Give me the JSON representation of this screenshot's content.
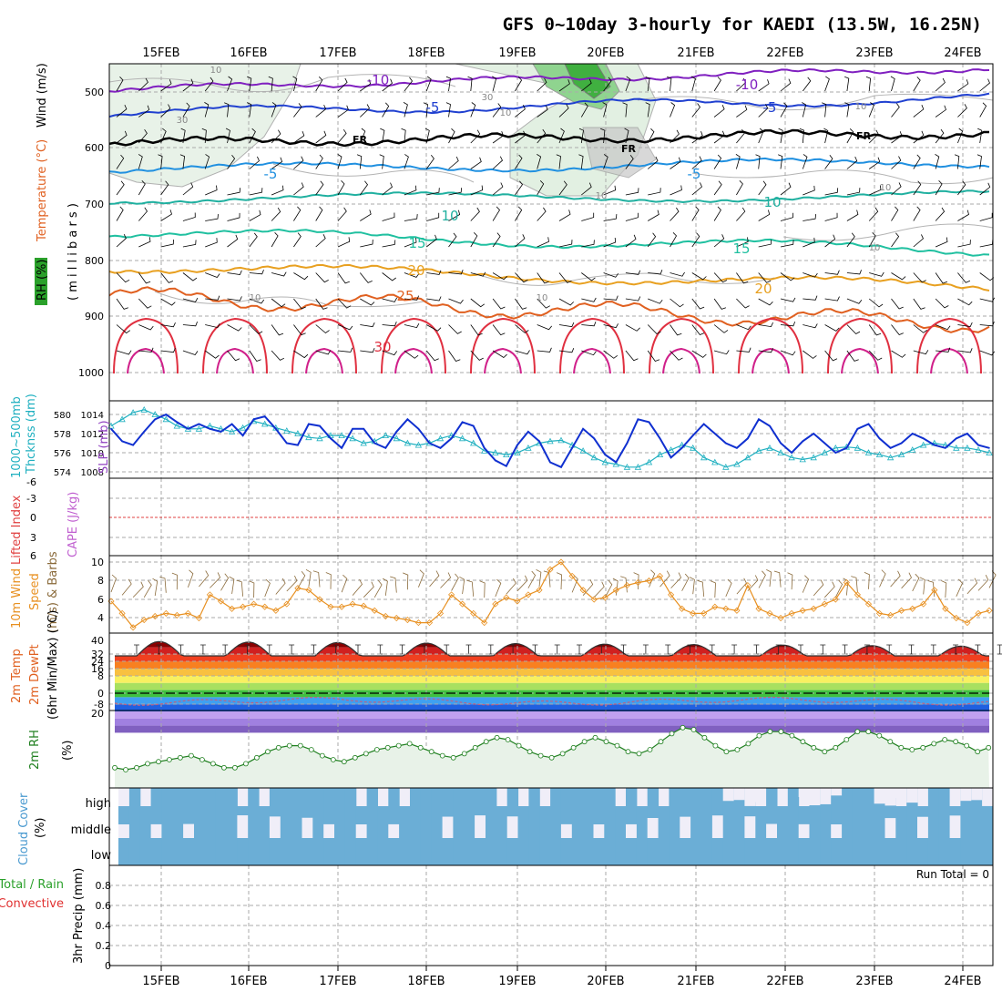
{
  "title": "GFS 0~10day 3-hourly for KAEDI (13.5W, 16.25N)",
  "run_total": "Run Total = 0",
  "dates": [
    "15FEB",
    "16FEB",
    "17FEB",
    "18FEB",
    "19FEB",
    "20FEB",
    "21FEB",
    "22FEB",
    "23FEB",
    "24FEB"
  ],
  "colors": {
    "temp_warm": "#e8a020",
    "temp_hot": "#e06020",
    "temp_red": "#e03040",
    "temp_cool": "#20b0a0",
    "temp_blue": "#2090e0",
    "temp_dark_blue": "#2040d0",
    "temp_purple": "#8020c0",
    "slp": "#1030d0",
    "thickness": "#20b0c0",
    "wind": "#e89020",
    "rh": "#208020",
    "cloud": "#6baed6",
    "cloud_clear": "#f0eef8"
  },
  "panels": {
    "upper": {
      "ylabel_rh": "RH (%)",
      "ylabel_temp": "Temperature (°C)",
      "ylabel_wind": "Wind (m/s)",
      "ylabel_units": "( m i l l i b a r s )",
      "yticks": [
        "500",
        "600",
        "700",
        "800",
        "900",
        "1000"
      ]
    },
    "slp": {
      "ylabel_thick": "1000~500mb",
      "ylabel_thick2": "Thcknss (dm)",
      "ylabel_slp": "SLP (mb)",
      "left_ticks": [
        "580",
        "578",
        "576",
        "574"
      ],
      "right_ticks": [
        "1014",
        "1012",
        "1010",
        "1008"
      ]
    },
    "cape": {
      "ylabel_li": "Lifted Index",
      "ylabel_cape": "CAPE (J/kg)",
      "yticks": [
        "-6",
        "-3",
        "0",
        "3",
        "6"
      ]
    },
    "wind10": {
      "ylabel1": "10m Wind",
      "ylabel2": "Speed",
      "ylabel3": "(m/s) & Barbs",
      "yticks": [
        "10",
        "8",
        "6",
        "4"
      ]
    },
    "temp2m": {
      "ylabel1": "2m Temp",
      "ylabel2": "2m DewPt",
      "ylabel3": "(6hr Min/Max) (°C)",
      "yticks": [
        "40",
        "32",
        "24",
        "16",
        "8",
        "0",
        "-8"
      ]
    },
    "rh2m": {
      "ylabel1": "2m RH",
      "ylabel2": "(%)",
      "yticks": [
        "20"
      ]
    },
    "cloud": {
      "ylabel1": "Cloud Cover",
      "ylabel2": "(%)",
      "levels": [
        "high",
        "middle",
        "low"
      ]
    },
    "precip": {
      "ylabel1": "Total / Rain",
      "ylabel2": "Convective",
      "ylabel3": "3hr Precip (mm)",
      "yticks": [
        "0.8",
        "0.6",
        "0.4",
        "0.2",
        "0"
      ]
    }
  },
  "contour_labels": {
    "temp": [
      "-10",
      "-10",
      "-5",
      "-5",
      "FR",
      "FR",
      "FR",
      "-5",
      "-5",
      "10",
      "10",
      "15",
      "15",
      "20",
      "20",
      "25",
      "30"
    ],
    "rh": [
      "10",
      "10",
      "30",
      "30",
      "10",
      "10",
      "10",
      "10",
      "10",
      "10"
    ]
  },
  "chart_data": [
    {
      "type": "line",
      "title": "SLP (mb)",
      "series": [
        {
          "name": "SLP (mb)",
          "unit": "mb",
          "values": [
            1012.5,
            1011.2,
            1010.8,
            1012.2,
            1013.5,
            1014.0,
            1013.2,
            1012.5,
            1013.0,
            1012.5,
            1012.2,
            1013.0,
            1011.8,
            1013.5,
            1013.8,
            1012.5,
            1011.0,
            1010.8,
            1013.0,
            1012.8,
            1011.5,
            1010.5,
            1012.5,
            1012.5,
            1011.0,
            1010.5,
            1012.2,
            1013.5,
            1012.5,
            1011.0,
            1010.5,
            1011.5,
            1013.2,
            1012.8,
            1010.5,
            1009.2,
            1008.6,
            1010.8,
            1012.2,
            1011.2,
            1009.0,
            1008.5,
            1010.5,
            1012.5,
            1011.5,
            1009.8,
            1009.0,
            1011.0,
            1013.5,
            1013.2,
            1011.5,
            1009.5,
            1010.5,
            1011.8,
            1013.0,
            1012.0,
            1011.0,
            1010.5,
            1011.5,
            1013.5,
            1012.8,
            1011.0,
            1010.0,
            1011.2,
            1012.0,
            1011.0,
            1010.0,
            1010.5,
            1012.5,
            1013.0,
            1011.5,
            1010.5,
            1011.0,
            1012.0,
            1011.5,
            1010.8,
            1010.5,
            1011.5,
            1012.0,
            1010.8,
            1010.5
          ]
        },
        {
          "name": "1000~500mb Thcknss (dm)",
          "unit": "dm",
          "values": [
            578.8,
            579.5,
            580.2,
            580.5,
            580.0,
            579.5,
            578.8,
            578.5,
            578.5,
            578.8,
            578.5,
            578.2,
            578.6,
            579.3,
            579.0,
            578.6,
            578.3,
            578.0,
            577.6,
            577.5,
            577.8,
            577.8,
            577.5,
            577.0,
            577.2,
            577.8,
            577.5,
            577.0,
            576.8,
            577.0,
            577.5,
            577.8,
            577.5,
            577.0,
            576.2,
            576.0,
            575.8,
            576.0,
            576.5,
            577.0,
            577.2,
            577.3,
            576.8,
            576.2,
            575.5,
            575.0,
            574.8,
            574.5,
            574.5,
            575.0,
            575.8,
            576.3,
            576.8,
            576.5,
            575.5,
            575.0,
            574.5,
            574.8,
            575.5,
            576.2,
            576.5,
            576.0,
            575.5,
            575.3,
            575.5,
            576.0,
            576.5,
            576.6,
            576.5,
            576.0,
            575.8,
            575.5,
            575.8,
            576.3,
            576.8,
            577.0,
            576.8,
            576.5,
            576.5,
            576.3,
            576.0
          ]
        }
      ]
    },
    {
      "type": "line",
      "title": "10m Wind Speed (m/s)",
      "series": [
        {
          "name": "10m Wind Speed (m/s)",
          "unit": "m/s",
          "values": [
            5.8,
            4.5,
            3.0,
            3.8,
            4.2,
            4.5,
            4.3,
            4.5,
            4.0,
            6.5,
            5.8,
            5.0,
            5.2,
            5.5,
            5.2,
            4.8,
            5.5,
            7.2,
            7.0,
            6.0,
            5.2,
            5.2,
            5.5,
            5.3,
            4.8,
            4.2,
            4.0,
            3.8,
            3.5,
            3.5,
            4.5,
            6.5,
            5.5,
            4.5,
            3.5,
            5.5,
            6.2,
            5.8,
            6.5,
            7.0,
            9.2,
            10.0,
            8.5,
            7.0,
            6.0,
            6.2,
            7.0,
            7.5,
            7.8,
            8.0,
            8.5,
            6.5,
            5.0,
            4.5,
            4.5,
            5.2,
            5.0,
            4.8,
            7.5,
            5.0,
            4.5,
            4.0,
            4.5,
            4.8,
            5.0,
            5.5,
            6.0,
            7.8,
            6.5,
            5.5,
            4.5,
            4.3,
            4.8,
            5.0,
            5.5,
            7.0,
            5.0,
            4.0,
            3.5,
            4.5,
            4.8,
            5.0
          ]
        }
      ]
    },
    {
      "type": "line",
      "title": "2m RH (%)",
      "series": [
        {
          "name": "2m RH (%)",
          "unit": "%",
          "values": [
            12,
            11,
            12,
            14,
            15,
            16,
            17,
            18,
            16,
            14,
            12,
            12,
            14,
            17,
            20,
            22,
            23,
            23,
            21,
            18,
            16,
            15,
            17,
            19,
            21,
            22,
            23,
            24,
            22,
            20,
            18,
            17,
            19,
            22,
            25,
            27,
            26,
            23,
            20,
            18,
            17,
            19,
            22,
            25,
            27,
            25,
            23,
            20,
            19,
            21,
            25,
            29,
            32,
            31,
            27,
            23,
            20,
            21,
            24,
            28,
            30,
            30,
            28,
            25,
            22,
            20,
            22,
            26,
            30,
            30,
            28,
            25,
            22,
            21,
            22,
            24,
            26,
            25,
            23,
            20,
            22,
            23,
            24
          ]
        }
      ]
    }
  ]
}
